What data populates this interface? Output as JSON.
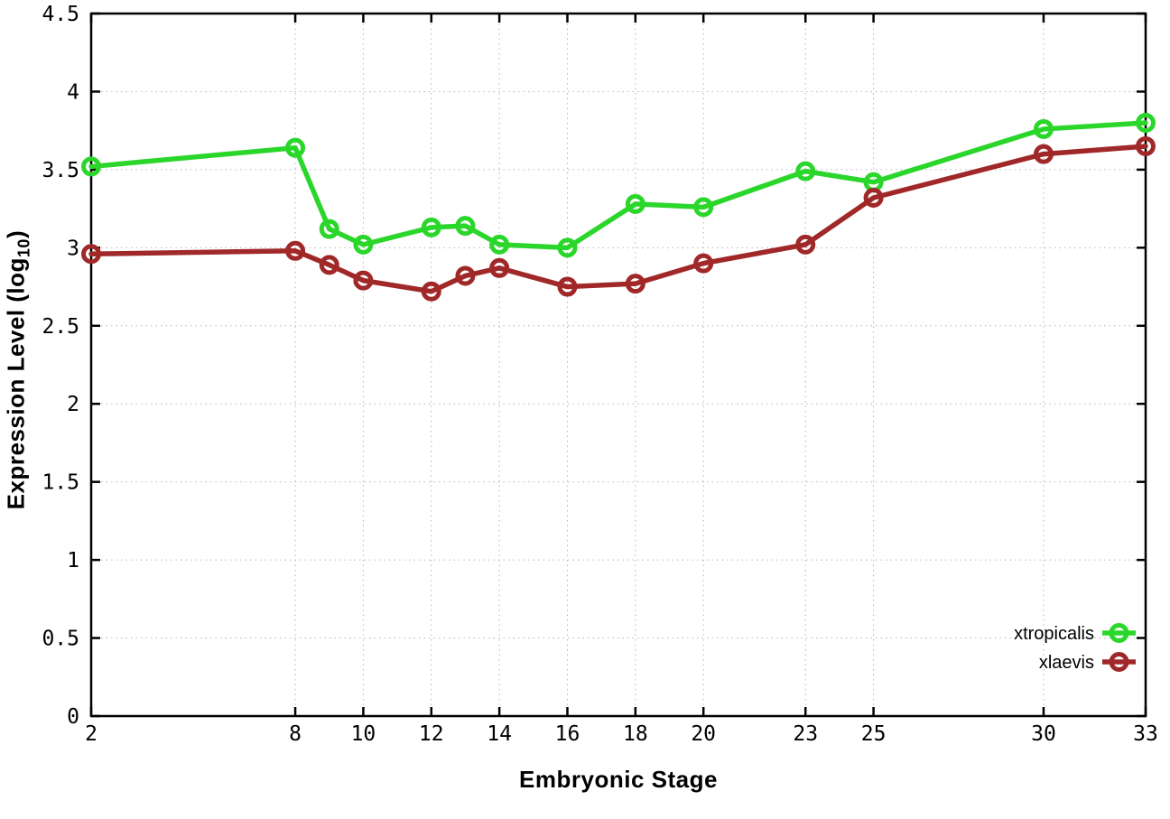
{
  "chart_data": {
    "type": "line",
    "title": "",
    "xlabel": "Embryonic Stage",
    "ylabel": "Expression Level (log10)",
    "ylabel_parts": {
      "prefix": "Expression Level (log",
      "sub": "10",
      "suffix": ")"
    },
    "xlim": [
      2,
      33
    ],
    "ylim": [
      0,
      4.5
    ],
    "xticks": [
      {
        "value": 2,
        "label": "2"
      },
      {
        "value": 8,
        "label": "8"
      },
      {
        "value": 10,
        "label": "10"
      },
      {
        "value": 12,
        "label": "12"
      },
      {
        "value": 14,
        "label": "14"
      },
      {
        "value": 16,
        "label": "16"
      },
      {
        "value": 18,
        "label": "18"
      },
      {
        "value": 20,
        "label": "20"
      },
      {
        "value": 23,
        "label": "23"
      },
      {
        "value": 25,
        "label": "25"
      },
      {
        "value": 30,
        "label": "30"
      },
      {
        "value": 33,
        "label": "33"
      }
    ],
    "yticks": [
      {
        "value": 0,
        "label": "0"
      },
      {
        "value": 0.5,
        "label": "0.5"
      },
      {
        "value": 1,
        "label": "1"
      },
      {
        "value": 1.5,
        "label": "1.5"
      },
      {
        "value": 2,
        "label": "2"
      },
      {
        "value": 2.5,
        "label": "2.5"
      },
      {
        "value": 3,
        "label": "3"
      },
      {
        "value": 3.5,
        "label": "3.5"
      },
      {
        "value": 4,
        "label": "4"
      },
      {
        "value": 4.5,
        "label": "4.5"
      }
    ],
    "grid": true,
    "legend_position": "bottom-right-inside",
    "series": [
      {
        "name": "xtropicalis",
        "color": "#2bd62b",
        "marker": "open-circle",
        "points": [
          [
            2,
            3.52
          ],
          [
            8,
            3.64
          ],
          [
            9,
            3.12
          ],
          [
            10,
            3.02
          ],
          [
            12,
            3.13
          ],
          [
            13,
            3.14
          ],
          [
            14,
            3.02
          ],
          [
            16,
            3.0
          ],
          [
            18,
            3.28
          ],
          [
            20,
            3.26
          ],
          [
            23,
            3.49
          ],
          [
            25,
            3.42
          ],
          [
            30,
            3.76
          ],
          [
            33,
            3.8
          ]
        ]
      },
      {
        "name": "xlaevis",
        "color": "#a02828",
        "marker": "open-circle",
        "points": [
          [
            2,
            2.96
          ],
          [
            8,
            2.98
          ],
          [
            9,
            2.89
          ],
          [
            10,
            2.79
          ],
          [
            12,
            2.72
          ],
          [
            13,
            2.82
          ],
          [
            14,
            2.87
          ],
          [
            16,
            2.75
          ],
          [
            18,
            2.77
          ],
          [
            20,
            2.9
          ],
          [
            23,
            3.02
          ],
          [
            25,
            3.32
          ],
          [
            30,
            3.6
          ],
          [
            33,
            3.65
          ]
        ]
      }
    ],
    "style": {
      "grid_color": "#b4b4c4",
      "axis_color": "#000000",
      "background": "#ffffff"
    }
  }
}
